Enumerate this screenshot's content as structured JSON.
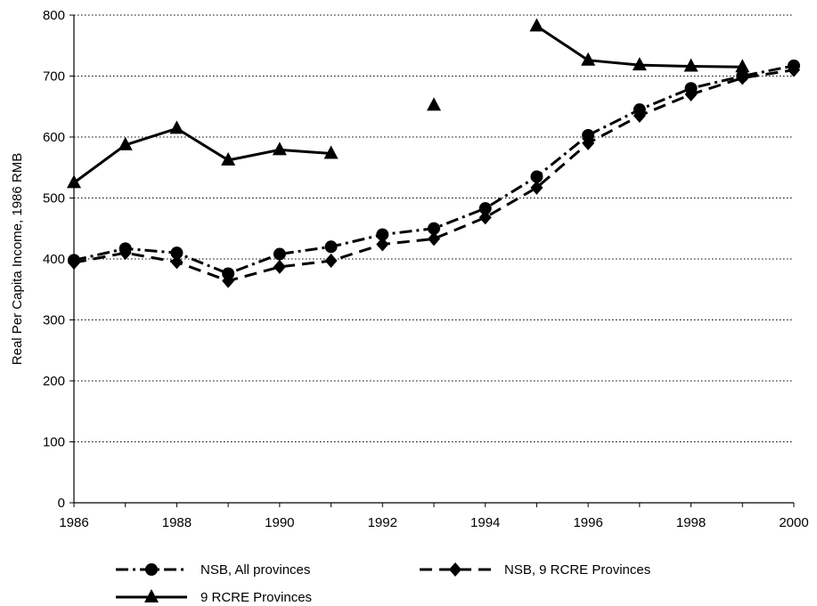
{
  "chart_data": {
    "type": "line",
    "title": "",
    "xlabel": "",
    "ylabel": "Real Per Capita Income, 1986 RMB",
    "xlim": [
      1986,
      2000
    ],
    "ylim": [
      0,
      800
    ],
    "x_ticks": [
      "1986",
      "1988",
      "1990",
      "1992",
      "1994",
      "1996",
      "1998",
      "2000"
    ],
    "y_ticks": [
      "0",
      "100",
      "200",
      "300",
      "400",
      "500",
      "600",
      "700",
      "800"
    ],
    "grid": "horizontal dotted",
    "legend_position": "bottom",
    "x": [
      1986,
      1987,
      1988,
      1989,
      1990,
      1991,
      1992,
      1993,
      1994,
      1995,
      1996,
      1997,
      1998,
      1999,
      2000
    ],
    "series": [
      {
        "name": "NSB, All provinces",
        "line_style": "dash-dot",
        "marker": "circle",
        "values": [
          398,
          417,
          410,
          376,
          408,
          420,
          440,
          450,
          483,
          535,
          603,
          645,
          680,
          700,
          717
        ]
      },
      {
        "name": "NSB, 9 RCRE Provinces",
        "line_style": "dashed",
        "marker": "diamond",
        "values": [
          394,
          410,
          395,
          364,
          387,
          397,
          424,
          433,
          468,
          517,
          590,
          635,
          670,
          697,
          710
        ]
      },
      {
        "name": "9 RCRE Provinces",
        "line_style": "solid",
        "marker": "triangle",
        "values": [
          525,
          587,
          614,
          562,
          579,
          573,
          null,
          652,
          null,
          782,
          726,
          718,
          716,
          715,
          null
        ]
      }
    ]
  }
}
